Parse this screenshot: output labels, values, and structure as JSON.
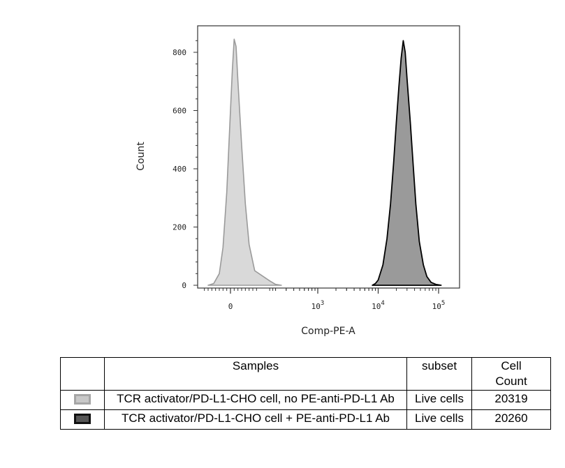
{
  "chart_data": {
    "type": "area",
    "xlabel": "Comp-PE-A",
    "ylabel": "Count",
    "x_scale": "biexponential",
    "ylim": [
      0,
      880
    ],
    "x_ticks": [
      {
        "value": 0,
        "label": "0"
      },
      {
        "value": 1000,
        "label": "10",
        "sup": "3"
      },
      {
        "value": 10000,
        "label": "10",
        "sup": "4"
      },
      {
        "value": 100000,
        "label": "10",
        "sup": "5"
      }
    ],
    "y_ticks": [
      0,
      200,
      400,
      600,
      800
    ],
    "series": [
      {
        "name": "TCR activator/PD-L1-CHO cell, no PE-anti-PD-L1 Ab",
        "fill": "#d9d9d9",
        "stroke": "#9a9a9a",
        "x": [
          -120,
          -90,
          -60,
          -40,
          -20,
          0,
          10,
          20,
          30,
          40,
          60,
          80,
          100,
          130,
          160,
          200,
          250
        ],
        "y": [
          0,
          6,
          40,
          130,
          320,
          600,
          740,
          845,
          820,
          700,
          480,
          280,
          140,
          50,
          15,
          3,
          0
        ]
      },
      {
        "name": "TCR activator/PD-L1-CHO cell + PE-anti-PD-L1 Ab",
        "fill": "#9a9a9a",
        "stroke": "#000000",
        "x": [
          8000,
          9000,
          10000,
          12000,
          14000,
          16000,
          18000,
          20000,
          22000,
          24000,
          26000,
          28000,
          30000,
          34000,
          38000,
          42000,
          48000,
          56000,
          64000,
          75000,
          90000,
          110000
        ],
        "y": [
          0,
          6,
          18,
          70,
          160,
          280,
          420,
          560,
          680,
          780,
          840,
          800,
          710,
          560,
          410,
          280,
          150,
          70,
          30,
          10,
          3,
          0
        ]
      }
    ]
  },
  "legend_table": {
    "headers": [
      "",
      "Samples",
      "subset",
      "Cell\nCount"
    ],
    "rows": [
      {
        "swatch_fill": "#c8c8c8",
        "swatch_border": "#a6a6a6",
        "sample": "TCR activator/PD-L1-CHO cell, no PE-anti-PD-L1 Ab",
        "subset": "Live cells",
        "count": "20319"
      },
      {
        "swatch_fill": "#555555",
        "swatch_border": "#111111",
        "sample": "TCR activator/PD-L1-CHO cell + PE-anti-PD-L1 Ab",
        "subset": "Live cells",
        "count": "20260"
      }
    ]
  }
}
